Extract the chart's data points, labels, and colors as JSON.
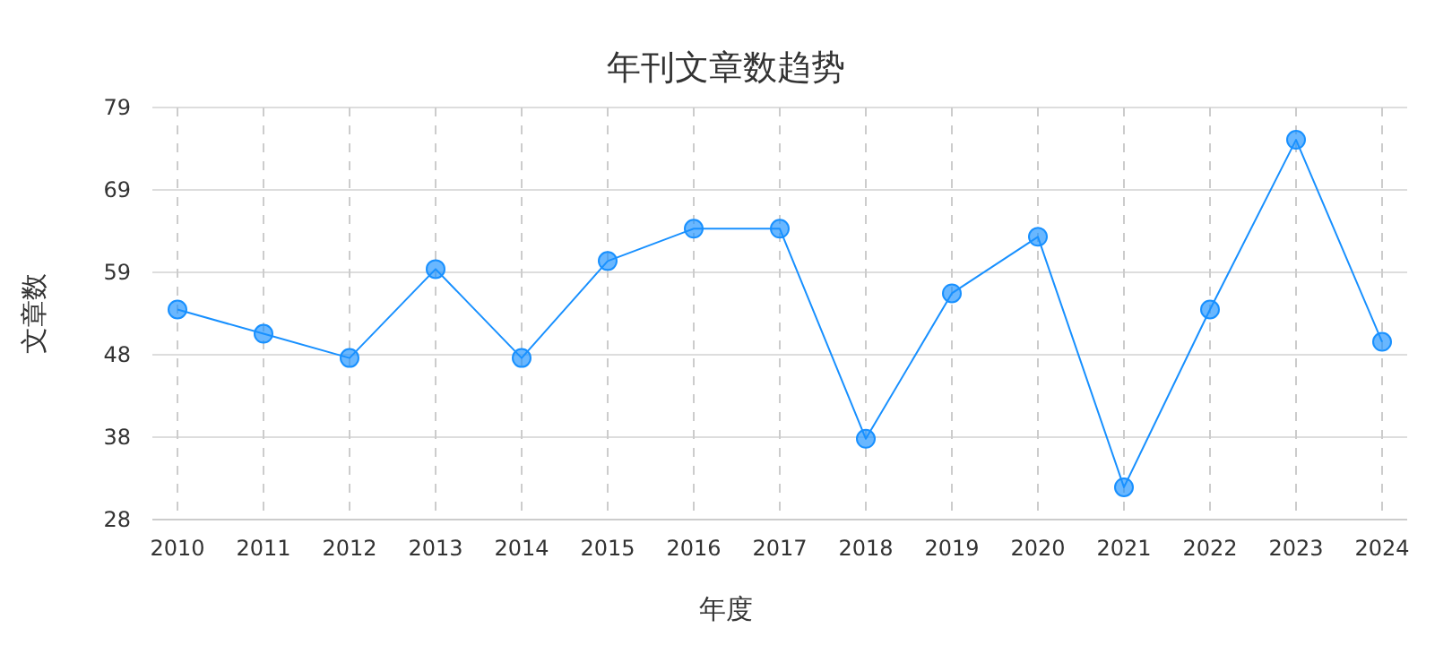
{
  "chart_data": {
    "type": "line",
    "title": "年刊文章数趋势",
    "xlabel": "年度",
    "ylabel": "文章数",
    "categories": [
      "2010",
      "2011",
      "2012",
      "2013",
      "2014",
      "2015",
      "2016",
      "2017",
      "2018",
      "2019",
      "2020",
      "2021",
      "2022",
      "2023",
      "2024"
    ],
    "series": [
      {
        "color": "#1890ff",
        "values": [
          54,
          51,
          48,
          59,
          48,
          60,
          64,
          64,
          38,
          56,
          63,
          32,
          54,
          75,
          50
        ]
      }
    ],
    "ylim": [
      28,
      79
    ],
    "yticks": [
      28,
      {
        "value": 38.2,
        "label": "38"
      },
      {
        "value": 48.4,
        "label": "48"
      },
      {
        "value": 58.6,
        "label": "59"
      },
      {
        "value": 68.8,
        "label": "69"
      },
      79
    ],
    "grid": true,
    "marker": "circle",
    "line_style": "solid"
  }
}
